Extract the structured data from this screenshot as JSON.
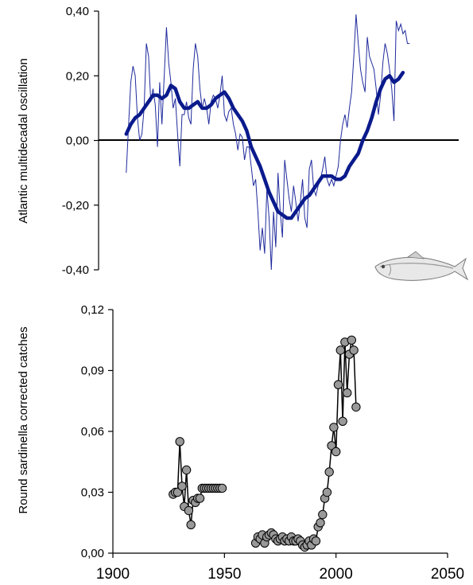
{
  "chart_data": [
    {
      "type": "line",
      "ylabel": "Atlantic multidecadal oscillation",
      "xlim": [
        1900,
        2050
      ],
      "ylim": [
        -0.4,
        0.4
      ],
      "yticks": [
        "-0,40",
        "-0,20",
        "0,00",
        "0,20",
        "0,40"
      ],
      "yticks_values": [
        -0.4,
        -0.2,
        0.0,
        0.2,
        0.4
      ],
      "zero_line": true,
      "colors": {
        "annual": "#1f2a9c",
        "smoothed": "#0a1a8c"
      },
      "decoration": "fish-icon",
      "series": [
        {
          "x": [
            1906,
            1907,
            1908,
            1909,
            1910,
            1911,
            1912,
            1913,
            1914,
            1915,
            1916,
            1917,
            1918,
            1919,
            1920,
            1921,
            1922,
            1923,
            1924,
            1925,
            1926,
            1927,
            1928,
            1929,
            1930,
            1931,
            1932,
            1933,
            1934,
            1935,
            1936,
            1937,
            1938,
            1939,
            1940,
            1941,
            1942,
            1943,
            1944,
            1945,
            1946,
            1947,
            1948,
            1949,
            1950,
            1951,
            1952,
            1953,
            1954,
            1955,
            1956,
            1957,
            1958,
            1959,
            1960,
            1961,
            1962,
            1963,
            1964,
            1965,
            1966,
            1967,
            1968,
            1969,
            1970,
            1971,
            1972,
            1973,
            1974,
            1975,
            1976,
            1977,
            1978,
            1979,
            1980,
            1981,
            1982,
            1983,
            1984,
            1985,
            1986,
            1987,
            1988,
            1989,
            1990,
            1991,
            1992,
            1993,
            1994,
            1995,
            1996,
            1997,
            1998,
            1999,
            2000,
            2001,
            2002,
            2003,
            2004,
            2005,
            2006,
            2007,
            2008,
            2009,
            2010,
            2011,
            2012,
            2013,
            2014,
            2015,
            2016,
            2017,
            2018,
            2019,
            2020,
            2021,
            2022,
            2023,
            2024,
            2025,
            2026,
            2027,
            2028,
            2029,
            2030,
            2031,
            2032,
            2033
          ],
          "y": [
            -0.1,
            0.04,
            0.18,
            0.23,
            0.2,
            0.07,
            0.0,
            0.02,
            0.1,
            0.3,
            0.26,
            0.12,
            0.16,
            0.11,
            -0.02,
            0.18,
            0.05,
            0.2,
            0.35,
            0.24,
            0.18,
            0.1,
            0.13,
            0.02,
            -0.08,
            0.08,
            0.08,
            0.12,
            0.07,
            0.05,
            0.22,
            0.3,
            0.26,
            0.16,
            0.1,
            0.13,
            0.1,
            0.05,
            0.12,
            0.14,
            0.13,
            0.1,
            0.14,
            0.2,
            0.08,
            0.06,
            0.09,
            0.1,
            0.05,
            0.02,
            -0.03,
            0.02,
            0.01,
            -0.06,
            -0.02,
            -0.02,
            -0.08,
            -0.14,
            -0.12,
            -0.22,
            -0.34,
            -0.27,
            -0.35,
            -0.15,
            -0.24,
            -0.4,
            -0.22,
            -0.33,
            -0.1,
            -0.22,
            -0.3,
            -0.06,
            -0.12,
            -0.18,
            -0.22,
            -0.14,
            -0.19,
            -0.25,
            -0.19,
            -0.12,
            -0.24,
            -0.27,
            -0.09,
            -0.06,
            -0.15,
            -0.17,
            -0.14,
            -0.12,
            -0.09,
            -0.05,
            -0.12,
            -0.14,
            -0.12,
            -0.14,
            -0.11,
            -0.08,
            0.0,
            0.05,
            0.08,
            0.04,
            0.1,
            0.15,
            0.26,
            0.39,
            0.3,
            0.22,
            0.18,
            0.15,
            0.32,
            0.26,
            0.24,
            0.22,
            0.16,
            0.08,
            0.14,
            0.24,
            0.3,
            0.27,
            0.22,
            0.16,
            0.06,
            0.37,
            0.34,
            0.36,
            0.33,
            0.34,
            0.3,
            0.3
          ],
          "role": "annual"
        },
        {
          "x": [
            1906,
            1908,
            1910,
            1912,
            1914,
            1916,
            1918,
            1920,
            1922,
            1924,
            1926,
            1928,
            1930,
            1932,
            1934,
            1936,
            1938,
            1940,
            1942,
            1944,
            1946,
            1948,
            1950,
            1952,
            1954,
            1956,
            1958,
            1960,
            1962,
            1964,
            1966,
            1968,
            1970,
            1972,
            1974,
            1976,
            1978,
            1980,
            1982,
            1984,
            1986,
            1988,
            1990,
            1992,
            1994,
            1996,
            1998,
            2000,
            2002,
            2004,
            2006,
            2008,
            2010,
            2012,
            2014,
            2016,
            2018,
            2020,
            2022,
            2024,
            2026,
            2028,
            2030
          ],
          "y": [
            0.02,
            0.05,
            0.07,
            0.08,
            0.1,
            0.12,
            0.14,
            0.14,
            0.13,
            0.14,
            0.17,
            0.16,
            0.12,
            0.1,
            0.1,
            0.11,
            0.12,
            0.1,
            0.1,
            0.11,
            0.13,
            0.14,
            0.15,
            0.13,
            0.1,
            0.08,
            0.06,
            0.03,
            -0.02,
            -0.05,
            -0.08,
            -0.12,
            -0.16,
            -0.19,
            -0.22,
            -0.23,
            -0.24,
            -0.24,
            -0.22,
            -0.2,
            -0.18,
            -0.17,
            -0.15,
            -0.13,
            -0.11,
            -0.11,
            -0.11,
            -0.12,
            -0.12,
            -0.11,
            -0.08,
            -0.06,
            -0.04,
            0.0,
            0.03,
            0.07,
            0.12,
            0.16,
            0.19,
            0.2,
            0.18,
            0.19,
            0.21
          ],
          "role": "smoothed"
        }
      ]
    },
    {
      "type": "line",
      "ylabel": "Round sardinella corrected catches",
      "xlim": [
        1900,
        2050
      ],
      "ylim": [
        0,
        0.12
      ],
      "yticks": [
        "0,00",
        "0,03",
        "0,06",
        "0,09",
        "0,12"
      ],
      "yticks_values": [
        0,
        0.03,
        0.06,
        0.09,
        0.12
      ],
      "xticks": [
        "1900",
        "1950",
        "2000",
        "2050"
      ],
      "xticks_values": [
        1900,
        1950,
        2000,
        2050
      ],
      "marker": "circle",
      "colors": {
        "marker_fill": "#999999",
        "line": "#000000"
      },
      "segments": [
        {
          "x": [
            1927,
            1928,
            1929,
            1930,
            1931,
            1932,
            1933,
            1934,
            1935,
            1936,
            1937,
            1938,
            1939,
            1940,
            1941,
            1942,
            1943,
            1944,
            1945,
            1946,
            1947,
            1948,
            1949
          ],
          "y": [
            0.029,
            0.03,
            0.03,
            0.055,
            0.033,
            0.023,
            0.041,
            0.021,
            0.014,
            0.026,
            0.025,
            0.027,
            0.027,
            0.032,
            0.032,
            0.032,
            0.032,
            0.032,
            0.032,
            0.032,
            0.032,
            0.032,
            0.032
          ]
        },
        {
          "x": [
            1964,
            1965,
            1966,
            1967,
            1968,
            1969,
            1970,
            1971,
            1972,
            1973,
            1974,
            1975,
            1976,
            1977,
            1978,
            1979,
            1980,
            1981,
            1982,
            1983,
            1984,
            1985,
            1986,
            1987,
            1988,
            1989,
            1990,
            1991,
            1992,
            1993,
            1994,
            1995,
            1996,
            1997,
            1998,
            1999,
            2000,
            2001,
            2002,
            2003,
            2004,
            2005,
            2006,
            2007,
            2008,
            2009
          ],
          "y": [
            0.005,
            0.008,
            0.007,
            0.009,
            0.005,
            0.008,
            0.009,
            0.01,
            0.009,
            0.007,
            0.006,
            0.007,
            0.008,
            0.006,
            0.007,
            0.006,
            0.008,
            0.006,
            0.006,
            0.007,
            0.006,
            0.004,
            0.003,
            0.004,
            0.006,
            0.004,
            0.007,
            0.006,
            0.013,
            0.015,
            0.019,
            0.027,
            0.03,
            0.04,
            0.053,
            0.062,
            0.05,
            0.083,
            0.1,
            0.065,
            0.104,
            0.079,
            0.098,
            0.105,
            0.1,
            0.072
          ]
        }
      ]
    }
  ]
}
